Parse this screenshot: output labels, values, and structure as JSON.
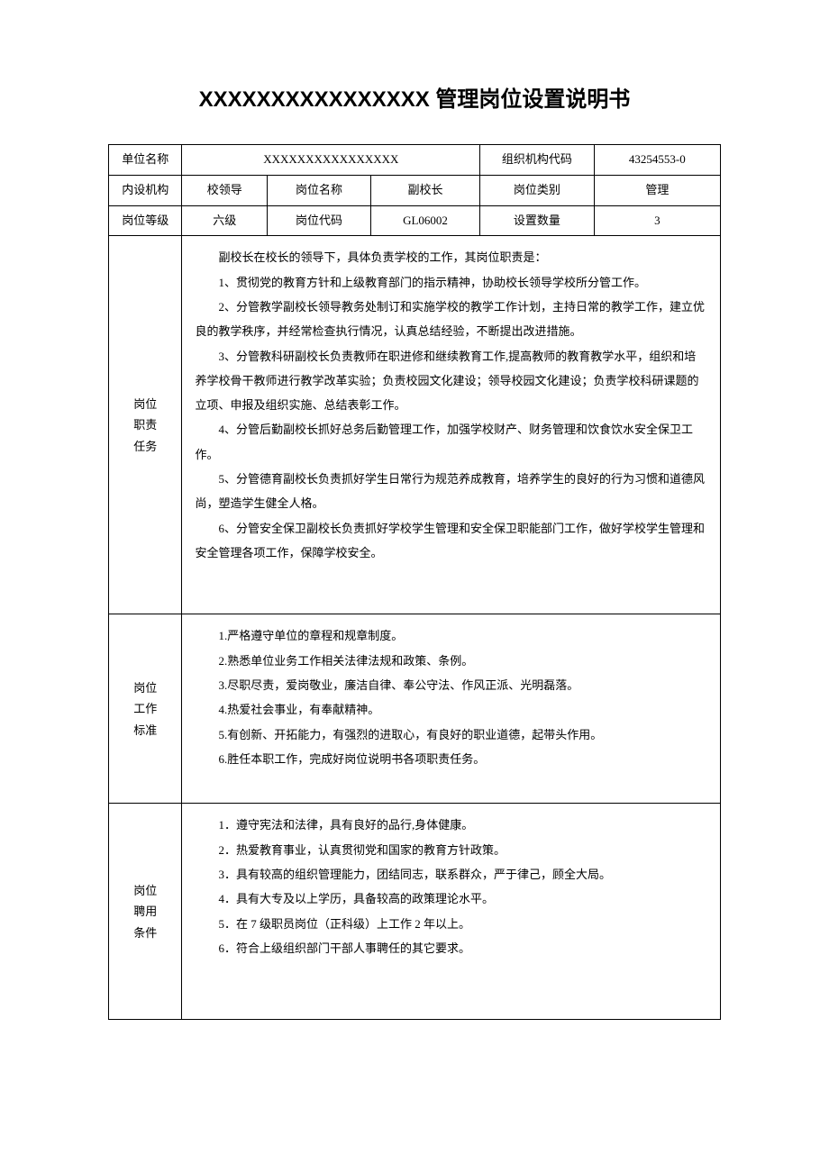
{
  "title": "XXXXXXXXXXXXXXXX 管理岗位设置说明书",
  "colors": {
    "text": "#000000",
    "border": "#000000",
    "background": "#ffffff"
  },
  "typography": {
    "title_fontsize": 24,
    "body_fontsize": 13,
    "title_family": "SimHei",
    "body_family": "SimSun"
  },
  "header": {
    "row1": {
      "label1": "单位名称",
      "value1": "XXXXXXXXXXXXXXXX",
      "label2": "组织机构代码",
      "value2": "43254553-0"
    },
    "row2": {
      "label1": "内设机构",
      "value1": "校领导",
      "label2": "岗位名称",
      "value2": "副校长",
      "label3": "岗位类别",
      "value3": "管理"
    },
    "row3": {
      "label1": "岗位等级",
      "value1": "六级",
      "label2": "岗位代码",
      "value2": "GL06002",
      "label3": "设置数量",
      "value3": "3"
    }
  },
  "sections": {
    "duties": {
      "label_l1": "岗位",
      "label_l2": "职责",
      "label_l3": "任务",
      "intro": "副校长在校长的领导下，具体负责学校的工作，其岗位职责是：",
      "items": [
        "1、贯彻党的教育方针和上级教育部门的指示精神，协助校长领导学校所分管工作。",
        "2、分管教学副校长领导教务处制订和实施学校的教学工作计划，主持日常的教学工作，建立优良的教学秩序，并经常检查执行情况，认真总结经验，不断提出改进措施。",
        "3、分管教科研副校长负责教师在职进修和继续教育工作,提高教师的教育教学水平，组织和培养学校骨干教师进行教学改革实验；负责校园文化建设；领导校园文化建设；负责学校科研课题的立项、申报及组织实施、总结表彰工作。",
        "4、分管后勤副校长抓好总务后勤管理工作，加强学校财产、财务管理和饮食饮水安全保卫工作。",
        "5、分管德育副校长负责抓好学生日常行为规范养成教育，培养学生的良好的行为习惯和道德风尚，塑造学生健全人格。",
        "6、分管安全保卫副校长负责抓好学校学生管理和安全保卫职能部门工作，做好学校学生管理和安全管理各项工作，保障学校安全。"
      ]
    },
    "standards": {
      "label_l1": "岗位",
      "label_l2": "工作",
      "label_l3": "标准",
      "items": [
        "1.严格遵守单位的章程和规章制度。",
        "2.熟悉单位业务工作相关法律法规和政策、条例。",
        "3.尽职尽责，爱岗敬业，廉洁自律、奉公守法、作风正派、光明磊落。",
        "4.热爱社会事业，有奉献精神。",
        "5.有创新、开拓能力，有强烈的进取心，有良好的职业道德，起带头作用。",
        "6.胜任本职工作，完成好岗位说明书各项职责任务。"
      ]
    },
    "conditions": {
      "label_l1": "岗位",
      "label_l2": "聘用",
      "label_l3": "条件",
      "items": [
        "1．遵守宪法和法律，具有良好的品行,身体健康。",
        "2．热爱教育事业，认真贯彻党和国家的教育方针政策。",
        "3．具有较高的组织管理能力，团结同志，联系群众，严于律己，顾全大局。",
        "4．具有大专及以上学历，具备较高的政策理论水平。",
        "5．在 7 级职员岗位（正科级）上工作 2 年以上。",
        "6．符合上级组织部门干部人事聘任的其它要求。"
      ]
    }
  }
}
